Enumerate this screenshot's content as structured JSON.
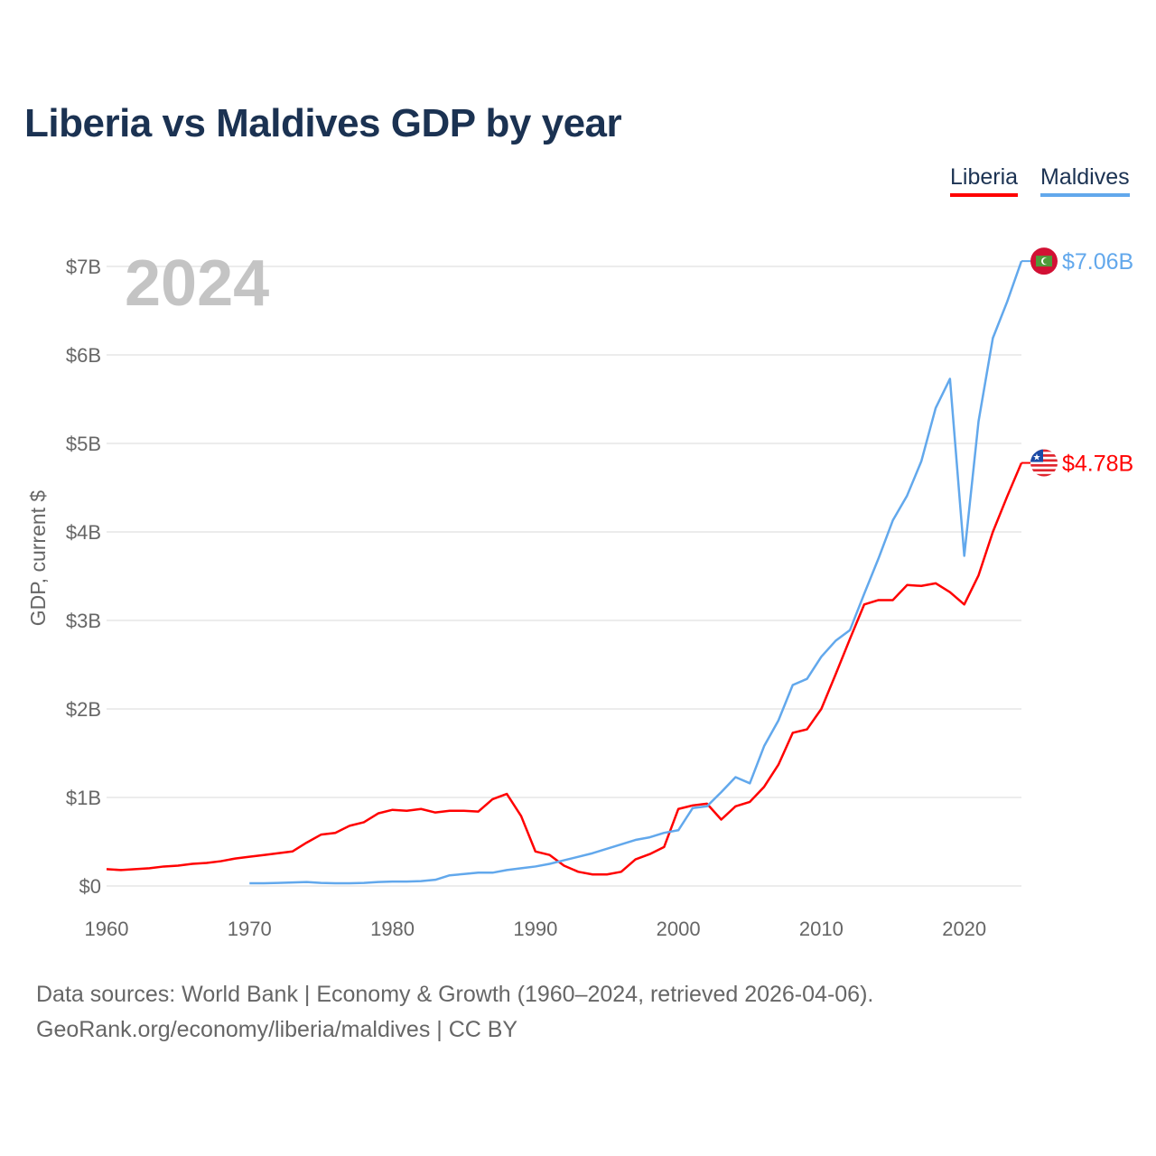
{
  "chart_data": {
    "type": "line",
    "title": "Liberia vs Maldives GDP by year",
    "ylabel": "GDP, current $",
    "xlabel": "",
    "xlim": [
      1960,
      2024
    ],
    "ylim": [
      0,
      7
    ],
    "x_ticks": [
      "1960",
      "1970",
      "1980",
      "1990",
      "2000",
      "2010",
      "2020"
    ],
    "y_ticks": [
      "$0",
      "$1B",
      "$2B",
      "$3B",
      "$4B",
      "$5B",
      "$6B",
      "$7B"
    ],
    "year_label": "2024",
    "grid": true,
    "legend_position": "top-right",
    "series": [
      {
        "name": "Liberia",
        "color": "#ff0000",
        "start_year": 1960,
        "end_label": "$4.78B",
        "flag": "liberia-flag",
        "values": [
          0.19,
          0.18,
          0.19,
          0.2,
          0.22,
          0.23,
          0.25,
          0.26,
          0.28,
          0.31,
          0.33,
          0.35,
          0.37,
          0.39,
          0.49,
          0.58,
          0.6,
          0.68,
          0.72,
          0.82,
          0.86,
          0.85,
          0.87,
          0.83,
          0.85,
          0.85,
          0.84,
          0.98,
          1.04,
          0.79,
          0.39,
          0.35,
          0.23,
          0.16,
          0.13,
          0.13,
          0.16,
          0.3,
          0.36,
          0.44,
          0.87,
          0.91,
          0.93,
          0.75,
          0.9,
          0.95,
          1.12,
          1.37,
          1.73,
          1.77,
          2.0,
          2.39,
          2.79,
          3.18,
          3.23,
          3.23,
          3.4,
          3.39,
          3.42,
          3.32,
          3.18,
          3.51,
          4.0,
          4.4,
          4.78
        ]
      },
      {
        "name": "Maldives",
        "color": "#62a8ec",
        "start_year": 1970,
        "end_label": "$7.06B",
        "flag": "maldives-flag",
        "values": [
          0.03,
          0.03,
          0.035,
          0.04,
          0.045,
          0.035,
          0.03,
          0.03,
          0.035,
          0.045,
          0.05,
          0.05,
          0.055,
          0.07,
          0.12,
          0.135,
          0.15,
          0.15,
          0.18,
          0.2,
          0.22,
          0.25,
          0.29,
          0.33,
          0.37,
          0.42,
          0.47,
          0.52,
          0.55,
          0.6,
          0.63,
          0.88,
          0.9,
          1.06,
          1.23,
          1.16,
          1.58,
          1.87,
          2.27,
          2.34,
          2.59,
          2.77,
          2.89,
          3.3,
          3.7,
          4.13,
          4.41,
          4.8,
          5.4,
          5.73,
          3.73,
          5.25,
          6.19,
          6.6,
          7.06
        ]
      }
    ]
  },
  "legend": {
    "liberia": "Liberia",
    "maldives": "Maldives"
  },
  "footer": {
    "line1": "Data sources: World Bank | Economy & Growth (1960–2024, retrieved 2026-04-06).",
    "line2": "GeoRank.org/economy/liberia/maldives | CC BY"
  }
}
